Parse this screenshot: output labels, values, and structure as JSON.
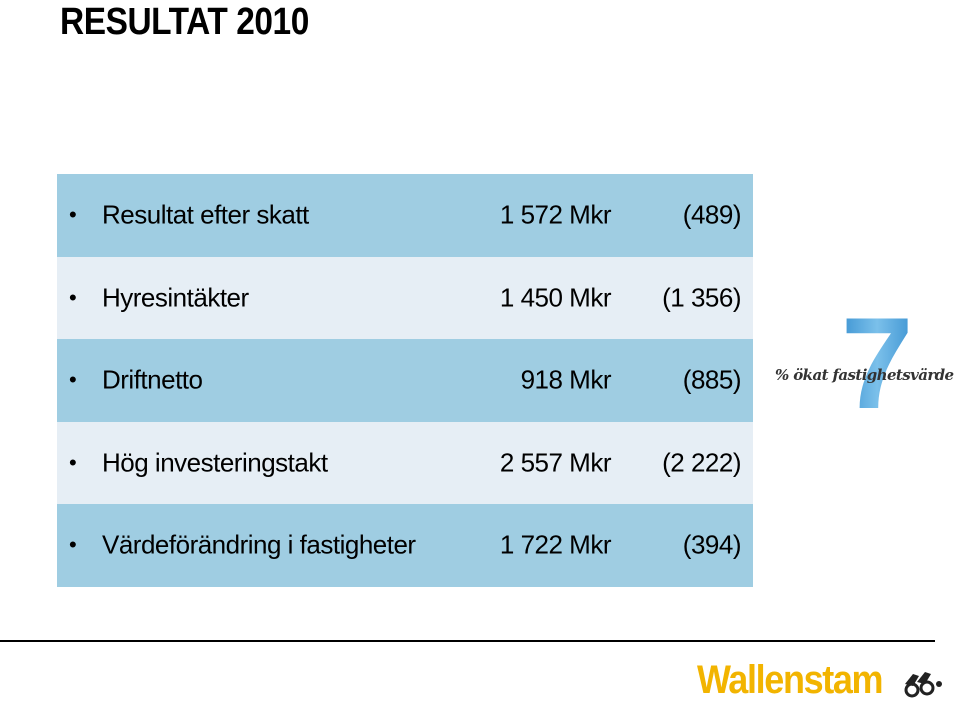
{
  "title": "RESULTAT 2010",
  "rows": [
    {
      "label": "Resultat efter skatt",
      "value": "1 572 Mkr",
      "prev": "(489)"
    },
    {
      "label": "Hyresintäkter",
      "value": "1 450 Mkr",
      "prev": "(1 356)"
    },
    {
      "label": "Driftnetto",
      "value": "918 Mkr",
      "prev": "(885)"
    },
    {
      "label": "Hög investeringstakt",
      "value": "2 557 Mkr",
      "prev": "(2 222)"
    },
    {
      "label": "Värdeförändring i fastigheter",
      "value": "1 722 Mkr",
      "prev": "(394)"
    }
  ],
  "badge": {
    "number": "7",
    "text": "% ökat fastighetsvärde",
    "color": "#5aa8dc"
  },
  "logo": {
    "text": "Wallenstam",
    "color": "#f2b400"
  },
  "colors": {
    "row_dark": "#9fcde2",
    "row_light": "#e6eef5"
  }
}
